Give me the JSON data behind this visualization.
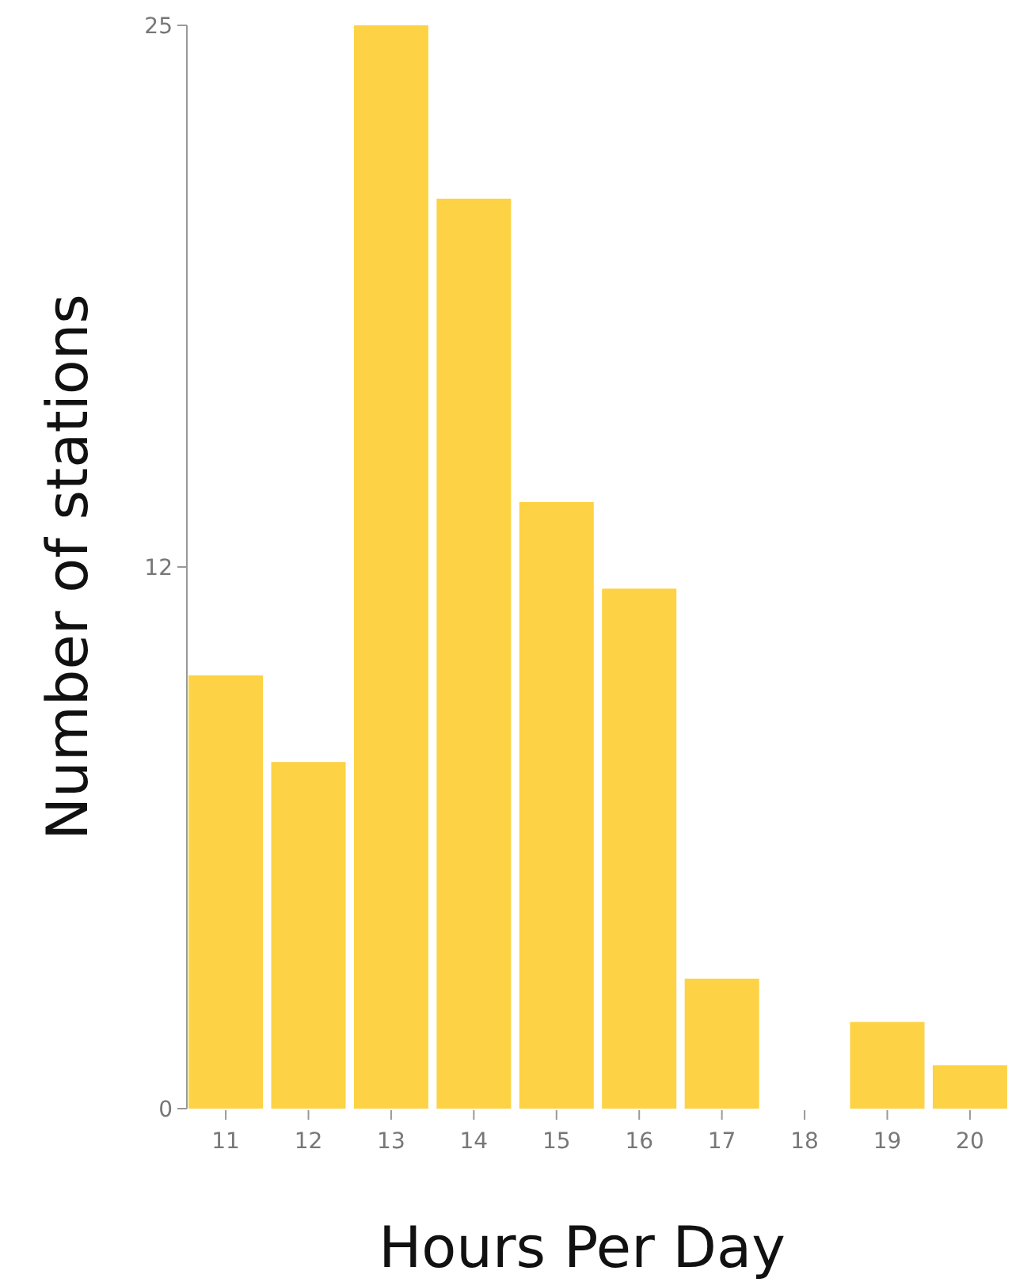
{
  "chart_data": {
    "type": "bar",
    "xlabel": "Hours Per Day",
    "ylabel": "Number of stations",
    "categories": [
      "11",
      "12",
      "13",
      "14",
      "15",
      "16",
      "17",
      "18",
      "19",
      "20"
    ],
    "values": [
      10,
      8,
      25,
      21,
      14,
      12,
      3,
      0,
      2,
      1
    ],
    "color": "#fdd244",
    "ylim": [
      0,
      25
    ],
    "yticks": [
      0,
      {
        "value": 12.5,
        "label": "12"
      },
      25
    ],
    "grid": false
  }
}
